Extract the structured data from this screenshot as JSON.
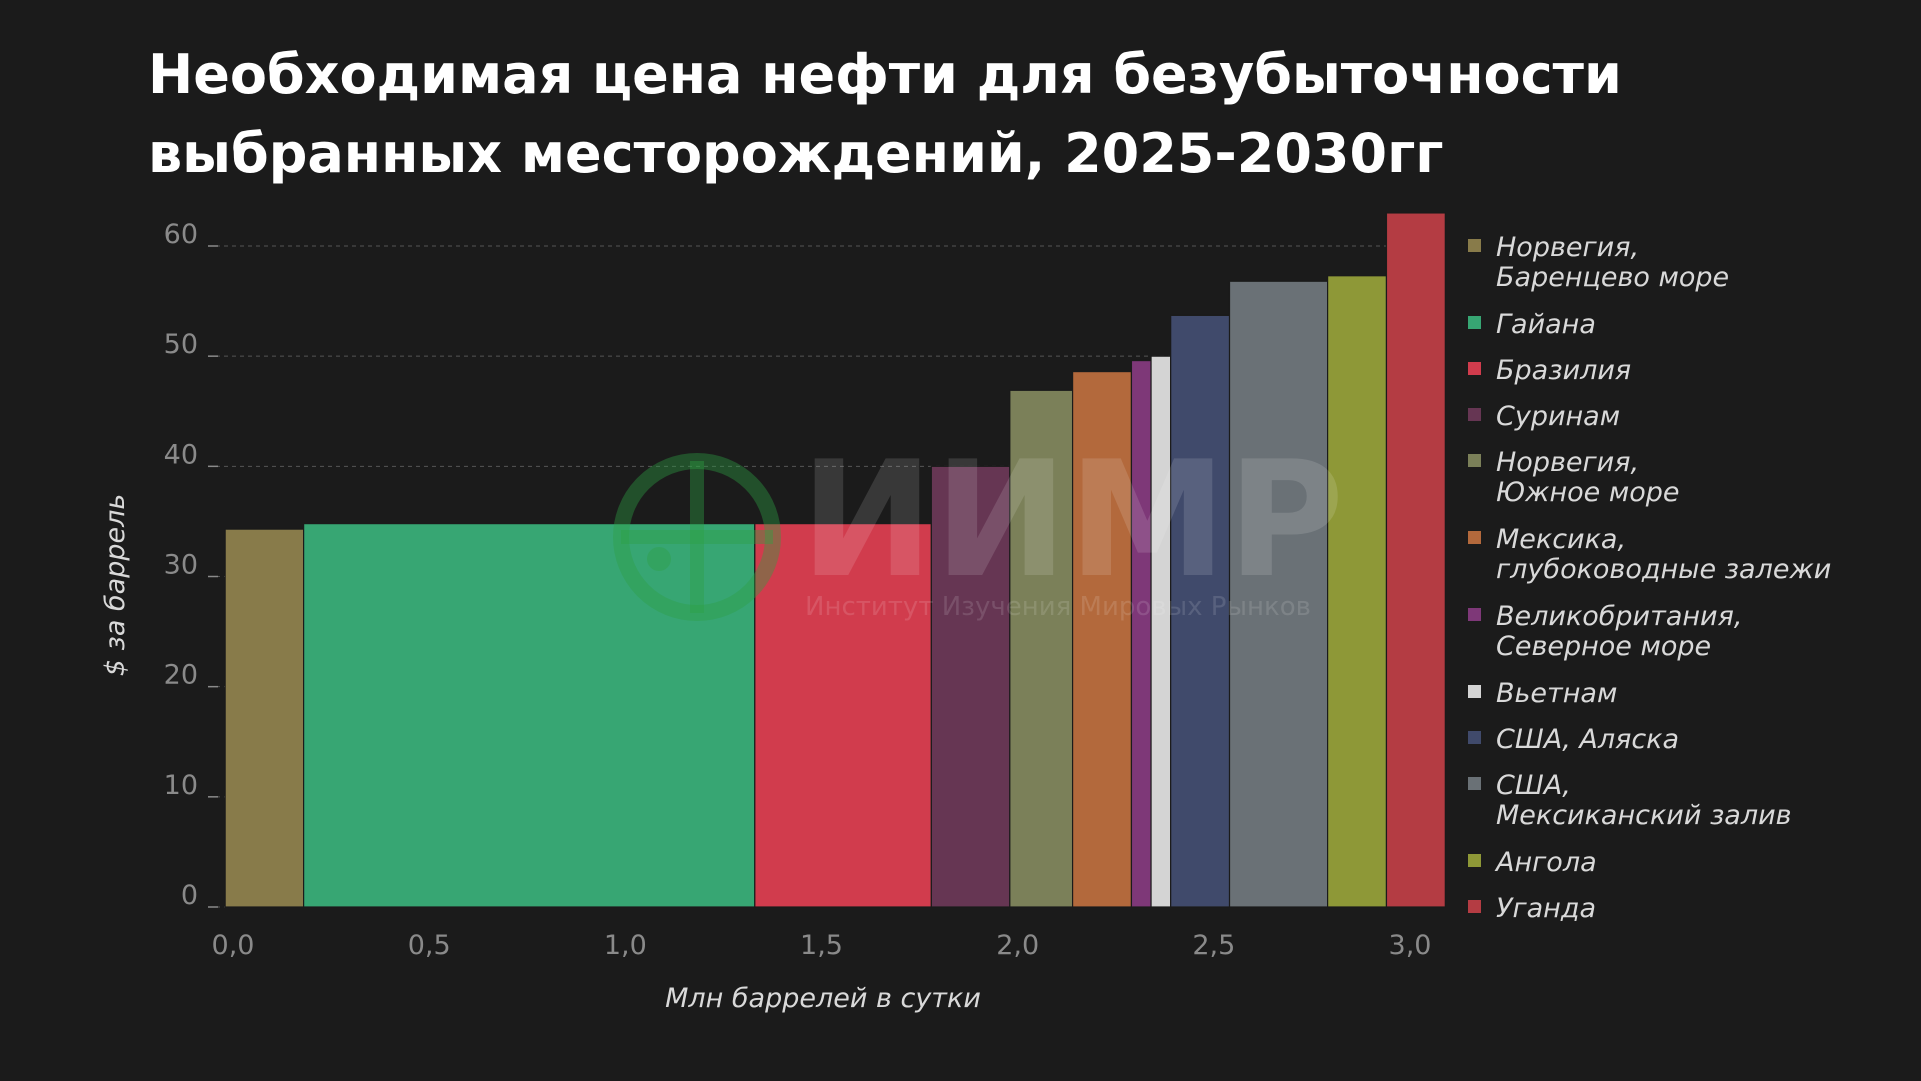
{
  "colors": {
    "background": "#1b1b1b",
    "grid": "#555555",
    "tick": "#8a8a8a",
    "text": "#ffffff",
    "axis_title": "#d9d9d9",
    "watermark_logo": "#2ea043"
  },
  "watermark": {
    "logo_icon": "globe-icon",
    "big": "ИИМР",
    "small": "Институт Изучения Мировых Рынков"
  },
  "chart_data": {
    "type": "bar",
    "variant": "variable-width",
    "title": "Необходимая цена нефти для безубыточности выбранных месторождений, 2025-2030гг",
    "title_lines": [
      "Необходимая цена нефти для безубыточности",
      "выбранных месторождений, 2025-2030гг"
    ],
    "xlabel": "Млн баррелей в сутки",
    "ylabel": "$ за баррель",
    "xlim": [
      0,
      3.0
    ],
    "ylim": [
      0,
      63
    ],
    "xticks": [
      0,
      0.5,
      1.0,
      1.5,
      2.0,
      2.5,
      3.0
    ],
    "xtick_labels": [
      "0,0",
      "0,5",
      "1,0",
      "1,5",
      "2,0",
      "2,5",
      "3,0"
    ],
    "yticks": [
      0,
      10,
      20,
      30,
      40,
      50,
      60
    ],
    "ytick_labels": [
      "0",
      "10",
      "20",
      "30",
      "40",
      "50",
      "60"
    ],
    "grid": true,
    "legend_position": "right",
    "series": [
      {
        "name": "Норвегия,\nБаренцево море",
        "x_start": -0.02,
        "x_end": 0.18,
        "value": 34.3,
        "color": "#887b4a"
      },
      {
        "name": "Гайана",
        "x_start": 0.18,
        "x_end": 1.33,
        "value": 34.8,
        "color": "#37a673"
      },
      {
        "name": "Бразилия",
        "x_start": 1.33,
        "x_end": 1.78,
        "value": 34.8,
        "color": "#d13c4d"
      },
      {
        "name": "Суринам",
        "x_start": 1.78,
        "x_end": 1.98,
        "value": 40.0,
        "color": "#663653"
      },
      {
        "name": "Норвегия,\nЮжное море",
        "x_start": 1.98,
        "x_end": 2.14,
        "value": 46.9,
        "color": "#7b8059"
      },
      {
        "name": "Мексика,\nглубоководные залежи",
        "x_start": 2.14,
        "x_end": 2.29,
        "value": 48.6,
        "color": "#b3693c"
      },
      {
        "name": "Великобритания,\nСеверное море",
        "x_start": 2.29,
        "x_end": 2.34,
        "value": 49.6,
        "color": "#7e3878"
      },
      {
        "name": "Вьетнам",
        "x_start": 2.34,
        "x_end": 2.39,
        "value": 50.0,
        "color": "#d4d4d4"
      },
      {
        "name": "США, Аляска",
        "x_start": 2.39,
        "x_end": 2.54,
        "value": 53.7,
        "color": "#404a6b"
      },
      {
        "name": "США,\nМексиканский залив",
        "x_start": 2.54,
        "x_end": 2.79,
        "value": 56.8,
        "color": "#6a7176"
      },
      {
        "name": "Ангола",
        "x_start": 2.79,
        "x_end": 2.94,
        "value": 57.3,
        "color": "#8e9837"
      },
      {
        "name": "Уганда",
        "x_start": 2.94,
        "x_end": 3.09,
        "value": 63.0,
        "color": "#b43c43"
      }
    ]
  }
}
